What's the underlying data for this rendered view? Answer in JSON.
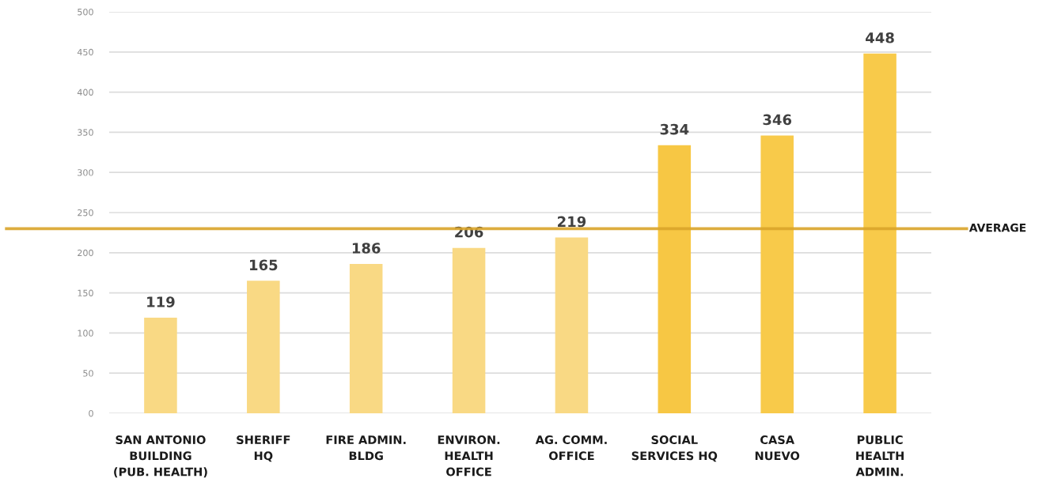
{
  "chart_data": {
    "type": "bar",
    "categories": [
      "SAN ANTONIO\nBUILDING\n(PUB. HEALTH)",
      "SHERIFF\nHQ",
      "FIRE ADMIN.\nBLDG",
      "ENVIRON.\nHEALTH\nOFFICE",
      "AG. COMM.\nOFFICE",
      "SOCIAL\nSERVICES HQ",
      "CASA\nNUEVO",
      "PUBLIC\nHEALTH\nADMIN."
    ],
    "values": [
      119,
      165,
      186,
      206,
      219,
      334,
      346,
      448
    ],
    "colors": [
      "#f9d984",
      "#f9d984",
      "#f9d984",
      "#f9d984",
      "#f9d984",
      "#f7c744",
      "#f8ca4a",
      "#f8ca4a"
    ],
    "ylim": [
      0,
      500
    ],
    "yticks": [
      0,
      50,
      100,
      150,
      200,
      250,
      300,
      350,
      400,
      450,
      500
    ],
    "grid": "y",
    "data_labels": true,
    "ref_lines": [
      {
        "axis": "y",
        "value": 230,
        "label": "AVERAGE",
        "color": "#d9a42a"
      }
    ]
  }
}
